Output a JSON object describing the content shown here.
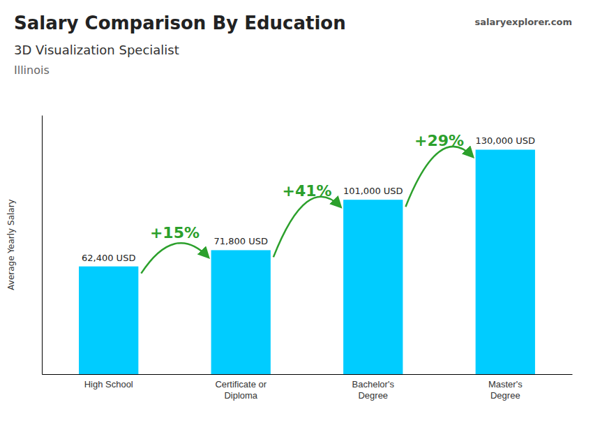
{
  "chart_data": {
    "type": "bar",
    "title": "Salary Comparison By Education",
    "subtitle": [
      "3D Visualization Specialist",
      "Illinois"
    ],
    "watermark": "salaryexplorer.com",
    "ylabel": "Average Yearly Salary",
    "categories": [
      "High School",
      "Certificate or\nDiploma",
      "Bachelor's\nDegree",
      "Master's\nDegree"
    ],
    "values": [
      62400,
      71800,
      101000,
      130000
    ],
    "value_labels": [
      "62,400 USD",
      "71,800 USD",
      "101,000 USD",
      "130,000 USD"
    ],
    "data_labels": true,
    "annotations": [
      "+15%",
      "+41%",
      "+29%"
    ],
    "color": "#00ccff",
    "ylim": [
      0,
      150000
    ],
    "tick_labels": "x"
  }
}
